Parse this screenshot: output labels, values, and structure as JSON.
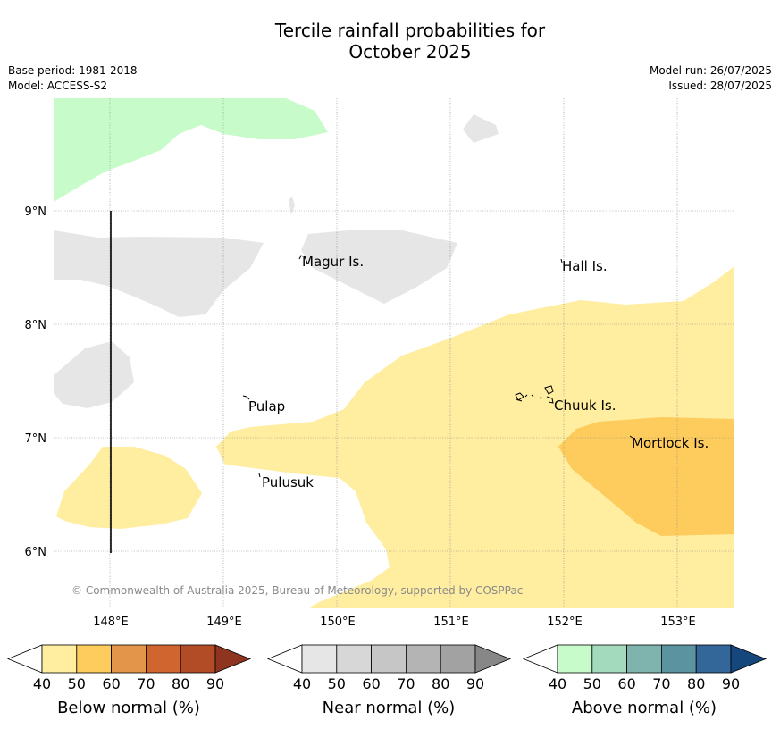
{
  "title_line1": "Tercile rainfall probabilities for",
  "title_line2": "October 2025",
  "base_period": "Base period: 1981-2018",
  "model": "Model: ACCESS-S2",
  "model_run": "Model run: 26/07/2025",
  "issued": "Issued: 28/07/2025",
  "y_ticks": [
    "9°N",
    "8°N",
    "7°N",
    "6°N"
  ],
  "x_ticks": [
    "148°E",
    "149°E",
    "150°E",
    "151°E",
    "152°E",
    "153°E"
  ],
  "places": {
    "magur": "Magur Is.",
    "hall": "Hall Is.",
    "pulap": "Pulap",
    "chuuk": "Chuuk Is.",
    "mortlock": "Mortlock Is.",
    "pulusuk": "Pulusuk"
  },
  "copyright": "© Commonwealth of Australia 2025, Bureau of Meteorology, supported by COSPPac",
  "colorbars": [
    {
      "title": "Below normal (%)",
      "ticks": [
        "40",
        "50",
        "60",
        "70",
        "80",
        "90"
      ],
      "colors": [
        "#ffeda0",
        "#fecc5c",
        "#e3964a",
        "#d0652f",
        "#b24c26",
        "#8f3420"
      ]
    },
    {
      "title": "Near normal (%)",
      "ticks": [
        "40",
        "50",
        "60",
        "70",
        "80",
        "90"
      ],
      "colors": [
        "#e6e6e6",
        "#d7d7d7",
        "#c6c6c6",
        "#b4b4b4",
        "#a2a2a2",
        "#878787"
      ]
    },
    {
      "title": "Above normal (%)",
      "ticks": [
        "40",
        "50",
        "60",
        "70",
        "80",
        "90"
      ],
      "colors": [
        "#c7fcca",
        "#a3d9bc",
        "#7fb3ae",
        "#5b93a0",
        "#336699",
        "#15467c"
      ]
    }
  ]
}
